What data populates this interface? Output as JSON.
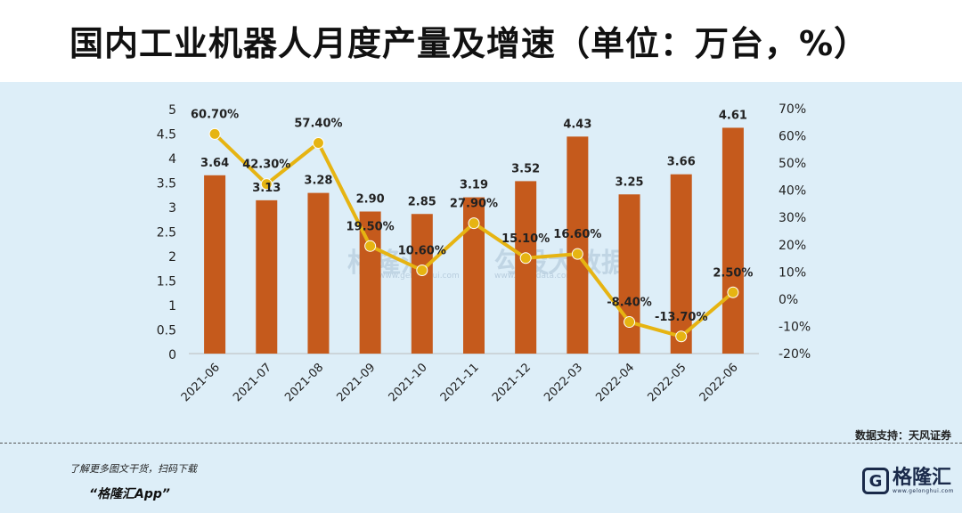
{
  "title": "国内工业机器人月度产量及增速（单位：万台，%）",
  "source": "数据支持：天风证券",
  "footer": {
    "promo": "了解更多图文干货，扫码下载",
    "app_name": "“格隆汇App”",
    "logo_text": "格隆汇",
    "logo_url": "www.gelonghui.com"
  },
  "watermarks": {
    "left": "格隆汇",
    "left_url": "www.gelonghui.com",
    "right": "勾股大数据",
    "right_url": "www.gogudata.com"
  },
  "colors": {
    "bar": "#c55a1c",
    "line": "#e6b412",
    "background": "#ddeef8"
  },
  "chart_data": {
    "type": "bar+line",
    "categories": [
      "2021-06",
      "2021-07",
      "2021-08",
      "2021-09",
      "2021-10",
      "2021-11",
      "2021-12",
      "2022-03",
      "2022-04",
      "2022-05",
      "2022-06"
    ],
    "series": [
      {
        "type": "bar",
        "axis": "left",
        "values": [
          3.64,
          3.13,
          3.28,
          2.9,
          2.85,
          3.19,
          3.52,
          4.43,
          3.25,
          3.66,
          4.61
        ],
        "labels": [
          "3.64",
          "3.13",
          "3.28",
          "2.90",
          "2.85",
          "3.19",
          "3.52",
          "4.43",
          "3.25",
          "3.66",
          "4.61"
        ]
      },
      {
        "type": "line",
        "axis": "right",
        "values": [
          60.7,
          42.3,
          57.4,
          19.5,
          10.6,
          27.9,
          15.1,
          16.6,
          -8.4,
          -13.7,
          2.5
        ],
        "labels": [
          "60.70%",
          "42.30%",
          "57.40%",
          "19.50%",
          "10.60%",
          "27.90%",
          "15.10%",
          "16.60%",
          "-8.40%",
          "-13.70%",
          "2.50%"
        ]
      }
    ],
    "y_left": {
      "ylim": [
        0,
        5
      ],
      "ticks": [
        "0",
        "0.5",
        "1",
        "1.5",
        "2",
        "2.5",
        "3",
        "3.5",
        "4",
        "4.5",
        "5"
      ]
    },
    "y_right": {
      "ylim": [
        -20,
        70
      ],
      "ticks": [
        "-20%",
        "-10%",
        "0%",
        "10%",
        "20%",
        "30%",
        "40%",
        "50%",
        "60%",
        "70%"
      ]
    },
    "grid": false,
    "legend": "none"
  }
}
